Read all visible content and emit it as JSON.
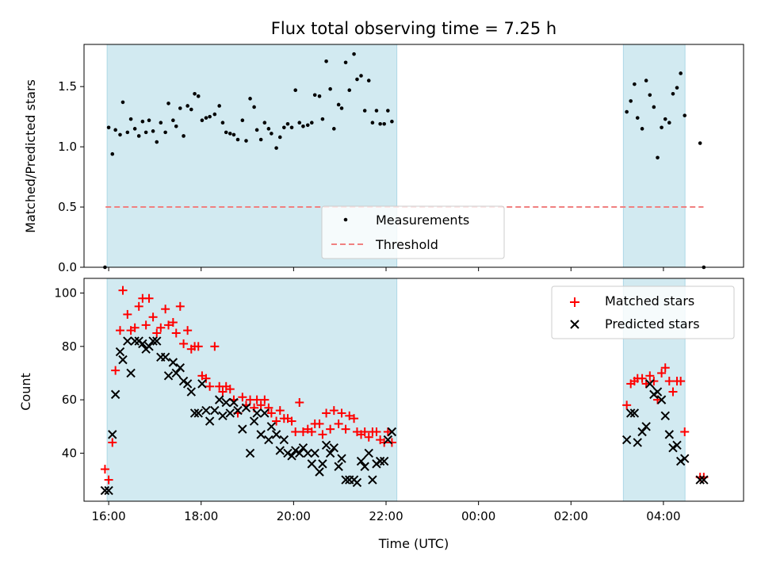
{
  "chart_data": [
    {
      "type": "scatter",
      "title": "Flux total observing time = 7.25 h",
      "xlabel": "",
      "ylabel": "Matched/Predicted stars",
      "x_unit": "hours since 16:00 UTC",
      "xlim": [
        -0.8,
        20.6
      ],
      "ylim": [
        0,
        1.85
      ],
      "yticks": [
        "0.0",
        "0.5",
        "1.0",
        "1.5"
      ],
      "grid": false,
      "legend_position": "lower-center",
      "shaded_spans": [
        [
          -0.05,
          9.35
        ],
        [
          16.7,
          18.7
        ]
      ],
      "threshold": {
        "name": "Threshold",
        "value": 0.5,
        "x_range": [
          -0.1,
          19.3
        ],
        "color": "#f08080"
      },
      "series": [
        {
          "name": "Measurements",
          "color": "#000000",
          "x": [
            -0.12,
            0.0,
            0.12,
            0.22,
            0.37,
            0.46,
            0.61,
            0.72,
            0.85,
            0.98,
            1.1,
            1.21,
            1.31,
            1.44,
            1.56,
            1.69,
            1.84,
            1.94,
            2.09,
            2.19,
            2.32,
            2.43,
            2.56,
            2.68,
            2.79,
            2.91,
            3.03,
            3.16,
            3.28,
            3.44,
            3.59,
            3.7,
            3.81,
            3.94,
            4.06,
            4.19,
            4.34,
            4.46,
            4.59,
            4.72,
            4.81,
            4.94,
            5.06,
            5.19,
            5.28,
            5.44,
            5.56,
            5.69,
            5.81,
            5.94,
            6.06,
            6.19,
            6.31,
            6.46,
            6.59,
            6.69,
            6.84,
            6.94,
            7.06,
            7.19,
            7.31,
            7.46,
            7.56,
            7.69,
            7.81,
            7.96,
            8.06,
            8.19,
            8.31,
            8.44,
            8.56,
            8.69,
            8.81,
            8.94,
            9.06,
            9.19,
            16.81,
            16.94,
            17.06,
            17.16,
            17.31,
            17.44,
            17.56,
            17.69,
            17.81,
            17.94,
            18.06,
            18.19,
            18.31,
            18.44,
            18.56,
            18.69,
            19.19,
            19.31
          ],
          "y": [
            0.0,
            1.16,
            0.94,
            1.14,
            1.1,
            1.37,
            1.12,
            1.23,
            1.15,
            1.09,
            1.21,
            1.12,
            1.22,
            1.13,
            1.04,
            1.2,
            1.12,
            1.36,
            1.22,
            1.17,
            1.32,
            1.09,
            1.34,
            1.31,
            1.44,
            1.42,
            1.22,
            1.24,
            1.25,
            1.27,
            1.34,
            1.2,
            1.12,
            1.11,
            1.1,
            1.06,
            1.22,
            1.05,
            1.4,
            1.33,
            1.14,
            1.06,
            1.2,
            1.15,
            1.11,
            0.99,
            1.08,
            1.16,
            1.19,
            1.16,
            1.47,
            1.2,
            1.17,
            1.18,
            1.2,
            1.43,
            1.42,
            1.23,
            1.71,
            1.48,
            1.15,
            1.35,
            1.32,
            1.7,
            1.47,
            1.77,
            1.56,
            1.59,
            1.3,
            1.55,
            1.2,
            1.3,
            1.19,
            1.19,
            1.3,
            1.21,
            1.29,
            1.38,
            1.52,
            1.24,
            1.15,
            1.55,
            1.43,
            1.33,
            0.91,
            1.16,
            1.23,
            1.2,
            1.44,
            1.49,
            1.61,
            1.26,
            1.03,
            0.0
          ]
        }
      ]
    },
    {
      "type": "scatter",
      "title": "",
      "xlabel": "Time (UTC)",
      "ylabel": "Count",
      "x_unit": "hours since 16:00 UTC",
      "xlim": [
        -0.8,
        20.6
      ],
      "ylim": [
        22,
        105.5
      ],
      "xticks": [
        {
          "v": 0,
          "label": "16:00"
        },
        {
          "v": 3,
          "label": "18:00"
        },
        {
          "v": 6,
          "label": "20:00"
        },
        {
          "v": 9,
          "label": "22:00"
        },
        {
          "v": 12,
          "label": "00:00"
        },
        {
          "v": 15,
          "label": "02:00"
        },
        {
          "v": 18,
          "label": "04:00"
        }
      ],
      "yticks": [
        "40",
        "60",
        "80",
        "100"
      ],
      "grid": false,
      "legend_position": "top-right",
      "shaded_spans": [
        [
          -0.05,
          9.35
        ],
        [
          16.7,
          18.7
        ]
      ],
      "series": [
        {
          "name": "Matched stars",
          "marker": "plus",
          "color": "#ff0000",
          "x": [
            -0.12,
            0.0,
            0.12,
            0.22,
            0.37,
            0.46,
            0.61,
            0.72,
            0.85,
            0.98,
            1.1,
            1.21,
            1.31,
            1.44,
            1.56,
            1.69,
            1.84,
            1.94,
            2.09,
            2.19,
            2.32,
            2.43,
            2.56,
            2.68,
            2.79,
            2.91,
            3.03,
            3.16,
            3.28,
            3.44,
            3.59,
            3.7,
            3.81,
            3.94,
            4.06,
            4.19,
            4.34,
            4.46,
            4.59,
            4.72,
            4.81,
            4.94,
            5.06,
            5.19,
            5.28,
            5.44,
            5.56,
            5.69,
            5.81,
            5.94,
            6.06,
            6.19,
            6.31,
            6.46,
            6.59,
            6.69,
            6.84,
            6.94,
            7.06,
            7.19,
            7.31,
            7.46,
            7.56,
            7.69,
            7.81,
            7.96,
            8.06,
            8.19,
            8.31,
            8.44,
            8.56,
            8.69,
            8.81,
            8.94,
            9.06,
            9.19,
            16.81,
            16.94,
            17.06,
            17.16,
            17.31,
            17.44,
            17.56,
            17.69,
            17.81,
            17.94,
            18.06,
            18.19,
            18.31,
            18.44,
            18.56,
            18.69,
            19.19,
            19.31
          ],
          "y": [
            34,
            30,
            44,
            71,
            86,
            101,
            92,
            86,
            87,
            95,
            98,
            88,
            98,
            91,
            85,
            87,
            94,
            88,
            89,
            85,
            95,
            81,
            86,
            79,
            80,
            80,
            69,
            68,
            65,
            80,
            65,
            63,
            65,
            64,
            60,
            55,
            61,
            58,
            60,
            57,
            60,
            58,
            60,
            57,
            55,
            52,
            56,
            53,
            53,
            52,
            48,
            59,
            48,
            49,
            48,
            51,
            51,
            47,
            55,
            49,
            56,
            51,
            55,
            49,
            54,
            53,
            48,
            47,
            48,
            46,
            48,
            48,
            45,
            44,
            48,
            44,
            58,
            66,
            67,
            68,
            68,
            66,
            69,
            67,
            60,
            70,
            72,
            67,
            63,
            67,
            67,
            48,
            31,
            31
          ]
        },
        {
          "name": "Predicted stars",
          "marker": "x",
          "color": "#000000",
          "x": [
            -0.12,
            0.0,
            0.12,
            0.22,
            0.37,
            0.46,
            0.61,
            0.72,
            0.85,
            0.98,
            1.1,
            1.21,
            1.31,
            1.44,
            1.56,
            1.69,
            1.84,
            1.94,
            2.09,
            2.19,
            2.32,
            2.43,
            2.56,
            2.68,
            2.79,
            2.91,
            3.03,
            3.16,
            3.28,
            3.44,
            3.59,
            3.7,
            3.81,
            3.94,
            4.06,
            4.19,
            4.34,
            4.46,
            4.59,
            4.72,
            4.81,
            4.94,
            5.06,
            5.19,
            5.28,
            5.44,
            5.56,
            5.69,
            5.81,
            5.94,
            6.06,
            6.19,
            6.31,
            6.46,
            6.59,
            6.69,
            6.84,
            6.94,
            7.06,
            7.19,
            7.31,
            7.46,
            7.56,
            7.69,
            7.81,
            7.96,
            8.06,
            8.19,
            8.31,
            8.44,
            8.56,
            8.69,
            8.81,
            8.94,
            9.06,
            9.19,
            16.81,
            16.94,
            17.06,
            17.16,
            17.31,
            17.44,
            17.56,
            17.69,
            17.81,
            17.94,
            18.06,
            18.19,
            18.31,
            18.44,
            18.56,
            18.69,
            19.19,
            19.31
          ],
          "y": [
            26,
            26,
            47,
            62,
            78,
            75,
            82,
            70,
            82,
            82,
            81,
            79,
            80,
            82,
            82,
            76,
            76,
            69,
            74,
            70,
            72,
            67,
            66,
            63,
            55,
            55,
            66,
            56,
            52,
            56,
            60,
            54,
            59,
            55,
            59,
            56,
            49,
            57,
            40,
            52,
            55,
            47,
            55,
            45,
            50,
            47,
            41,
            45,
            40,
            39,
            41,
            40,
            42,
            40,
            36,
            40,
            33,
            36,
            43,
            40,
            42,
            35,
            38,
            30,
            30,
            30,
            29,
            37,
            35,
            40,
            30,
            36,
            37,
            37,
            45,
            48,
            45,
            55,
            55,
            44,
            48,
            50,
            66,
            62,
            63,
            60,
            54,
            47,
            42,
            43,
            37,
            38,
            30,
            30
          ]
        }
      ]
    }
  ]
}
